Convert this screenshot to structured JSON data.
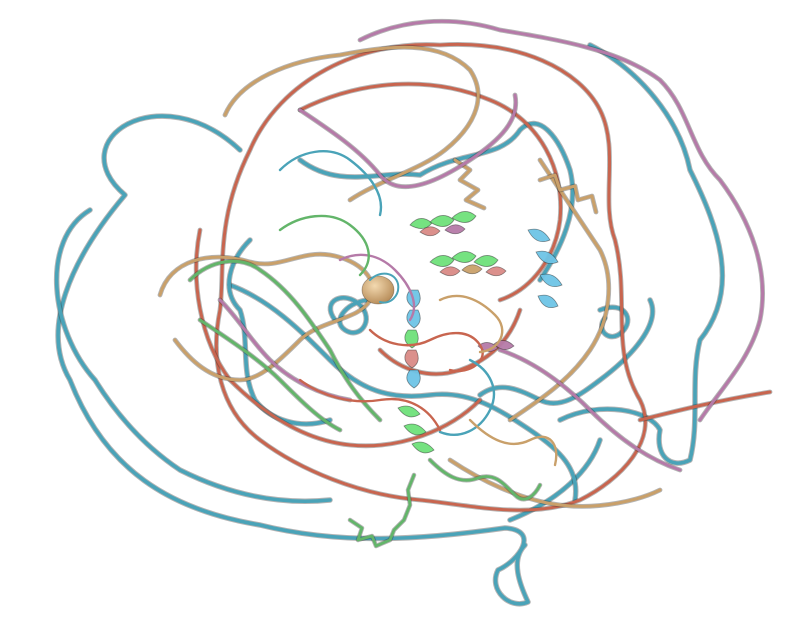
{
  "scene": {
    "kind": "protein-structure-ensemble",
    "background": "#ffffff",
    "chain_colors": {
      "teal": "#4aa3b8",
      "salmon": "#c8654f",
      "tan": "#c9a06a",
      "mauve": "#b57aa8",
      "green": "#63b56a",
      "bright_green": "#6fe07a",
      "light_blue": "#6ec4e6",
      "pink_helix": "#d98a86"
    }
  }
}
